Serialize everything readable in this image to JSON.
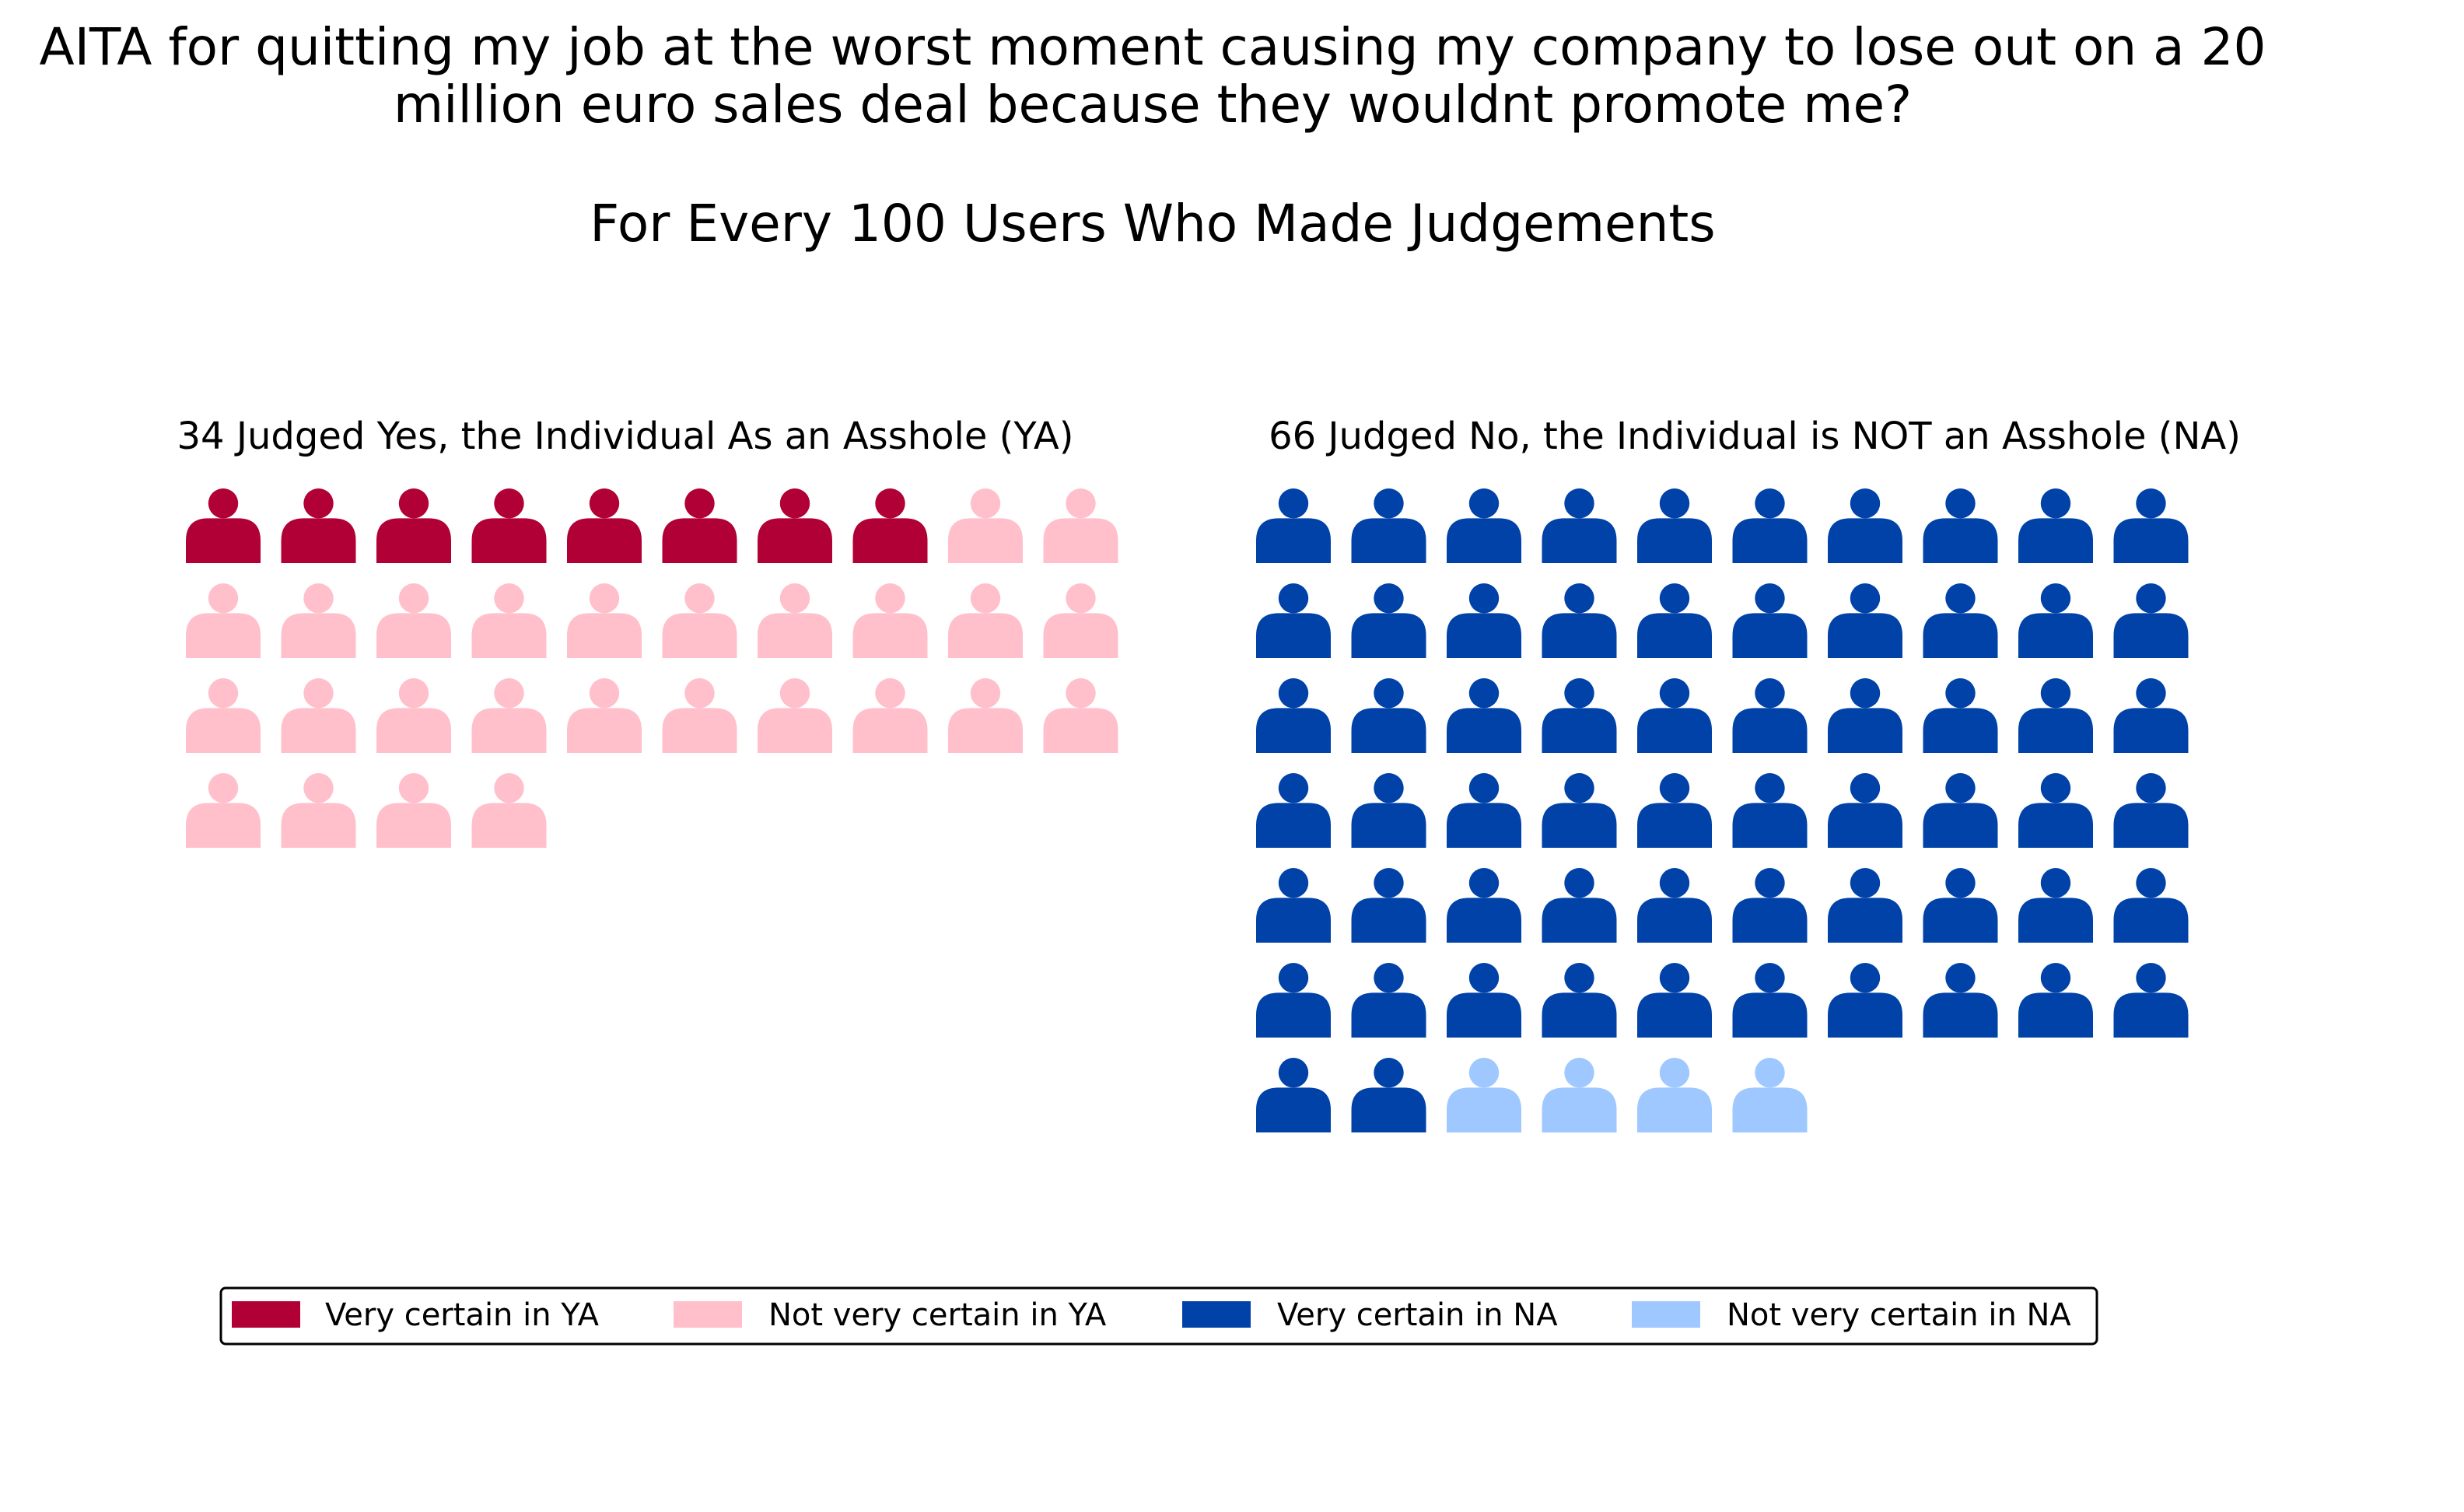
{
  "chart_data": {
    "type": "waffle",
    "title_lines": [
      "AITA for quitting my job at the worst moment causing my company to lose out on a 20",
      "million euro sales deal because they wouldnt promote me?"
    ],
    "subtitle": "For Every 100 Users Who Made Judgements",
    "unit": "users",
    "total": 100,
    "icon": "person-icon",
    "icons_per_row": 10,
    "panels": [
      {
        "id": "ya",
        "title": "34 Judged Yes, the Individual As an Asshole (YA)",
        "total": 34,
        "segments": [
          {
            "label": "Very certain in YA",
            "count": 8,
            "color": "#b10035"
          },
          {
            "label": "Not very certain in YA",
            "count": 26,
            "color": "#ffc0cb"
          }
        ]
      },
      {
        "id": "na",
        "title": "66 Judged No, the Individual is NOT an Asshole (NA)",
        "total": 66,
        "segments": [
          {
            "label": "Very certain in NA",
            "count": 62,
            "color": "#0042a8"
          },
          {
            "label": "Not very certain in NA",
            "count": 4,
            "color": "#9ec8ff"
          }
        ]
      }
    ],
    "legend": {
      "placement": "bottom-center",
      "entries": [
        {
          "label": "Very certain in YA",
          "color": "#b10035"
        },
        {
          "label": "Not very certain in YA",
          "color": "#ffc0cb"
        },
        {
          "label": "Very certain in NA",
          "color": "#0042a8"
        },
        {
          "label": "Not very certain in NA",
          "color": "#9ec8ff"
        }
      ]
    }
  }
}
